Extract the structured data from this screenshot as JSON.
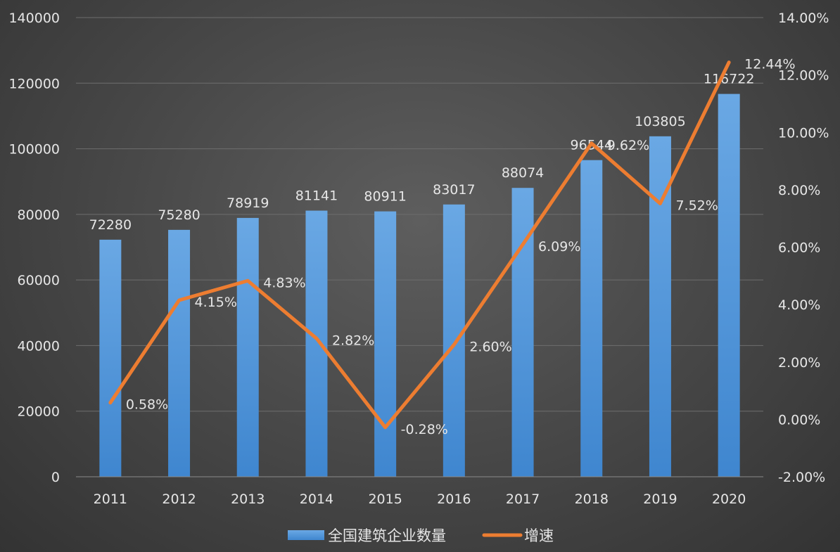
{
  "chart_data": {
    "type": "bar",
    "categories": [
      "2011",
      "2012",
      "2013",
      "2014",
      "2015",
      "2016",
      "2017",
      "2018",
      "2019",
      "2020"
    ],
    "series": [
      {
        "name": "全国建筑企业数量",
        "type": "bar",
        "axis": "left",
        "values": [
          72280,
          75280,
          78919,
          81141,
          80911,
          83017,
          88074,
          96544,
          103805,
          116722
        ],
        "labels": [
          "72280",
          "75280",
          "78919",
          "81141",
          "80911",
          "83017",
          "88074",
          "96544",
          "103805",
          "116722"
        ],
        "color": "#4a90d9"
      },
      {
        "name": "增速",
        "type": "line",
        "axis": "right",
        "values": [
          0.58,
          4.15,
          4.83,
          2.82,
          -0.28,
          2.6,
          6.09,
          9.62,
          7.52,
          12.44
        ],
        "labels": [
          "0.58%",
          "4.15%",
          "4.83%",
          "2.82%",
          "-0.28%",
          "2.60%",
          "6.09%",
          "9.62%",
          "7.52%",
          "12.44%"
        ],
        "color": "#ed7d31"
      }
    ],
    "y_left": {
      "lim": [
        0,
        140000
      ],
      "ticks": [
        "0",
        "20000",
        "40000",
        "60000",
        "80000",
        "100000",
        "120000",
        "140000"
      ]
    },
    "y_right": {
      "lim": [
        -2,
        14
      ],
      "ticks": [
        "-2.00%",
        "0.00%",
        "2.00%",
        "4.00%",
        "6.00%",
        "8.00%",
        "10.00%",
        "12.00%",
        "14.00%"
      ]
    },
    "grid": true,
    "legend": "bottom",
    "colors": {
      "bar_top": "#6aa8e4",
      "bar_bottom": "#3f86cf",
      "line": "#ed7d31",
      "text": "#e6e6e6",
      "grid": "#6e6e6e"
    }
  }
}
